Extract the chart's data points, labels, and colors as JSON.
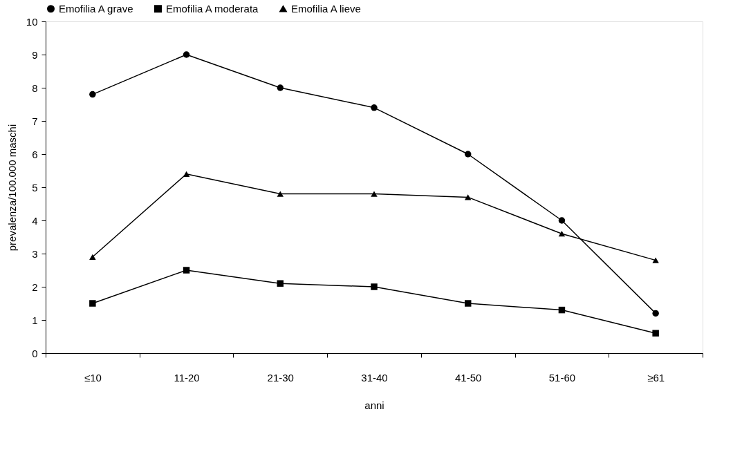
{
  "chart_data": {
    "type": "line",
    "xlabel": "anni",
    "ylabel": "prevalenza/100.000 maschi",
    "categories": [
      "≤10",
      "11-20",
      "21-30",
      "31-40",
      "41-50",
      "51-60",
      "≥61"
    ],
    "ylim": [
      0,
      10
    ],
    "yticks": [
      0,
      1,
      2,
      3,
      4,
      5,
      6,
      7,
      8,
      9,
      10
    ],
    "grid": false,
    "legend": "top",
    "line_style": "solid",
    "series": [
      {
        "name": "Emofilia A grave",
        "color": "#000000",
        "marker": "circle",
        "values": [
          7.8,
          9.0,
          8.0,
          7.4,
          6.0,
          4.0,
          1.2
        ]
      },
      {
        "name": "Emofilia A moderata",
        "color": "#000000",
        "marker": "square",
        "values": [
          1.5,
          2.5,
          2.1,
          2.0,
          1.5,
          1.3,
          0.6
        ]
      },
      {
        "name": "Emofilia A lieve",
        "color": "#000000",
        "marker": "triangle",
        "values": [
          2.9,
          5.4,
          4.8,
          4.8,
          4.7,
          3.6,
          2.8
        ]
      }
    ]
  }
}
